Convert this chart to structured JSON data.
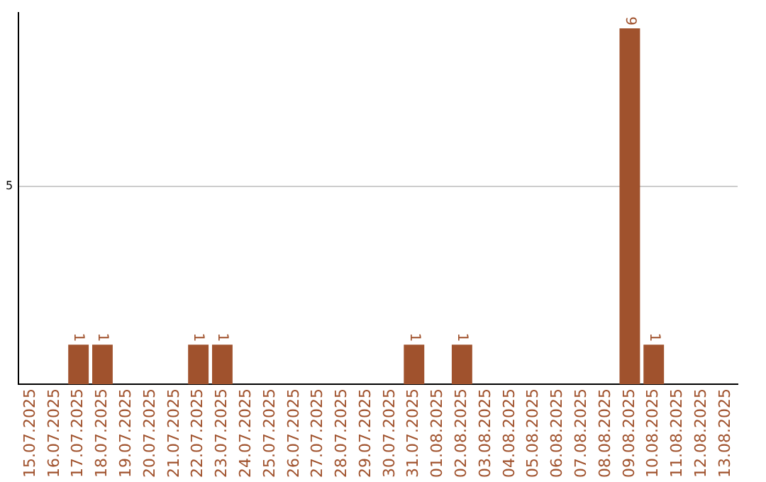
{
  "chart_data": {
    "type": "bar",
    "categories": [
      "15.07.2025",
      "16.07.2025",
      "17.07.2025",
      "18.07.2025",
      "19.07.2025",
      "20.07.2025",
      "21.07.2025",
      "22.07.2025",
      "23.07.2025",
      "24.07.2025",
      "25.07.2025",
      "26.07.2025",
      "27.07.2025",
      "28.07.2025",
      "29.07.2025",
      "30.07.2025",
      "31.07.2025",
      "01.08.2025",
      "02.08.2025",
      "03.08.2025",
      "04.08.2025",
      "05.08.2025",
      "06.08.2025",
      "07.08.2025",
      "08.08.2025",
      "09.08.2025",
      "10.08.2025",
      "11.08.2025",
      "12.08.2025",
      "13.08.2025"
    ],
    "values": [
      0,
      0,
      1,
      1,
      0,
      0,
      0,
      1,
      1,
      0,
      0,
      0,
      0,
      0,
      0,
      0,
      1,
      0,
      1,
      0,
      0,
      0,
      0,
      0,
      0,
      9,
      1,
      0,
      0,
      0
    ],
    "value_labels": [
      null,
      null,
      "1",
      "1",
      null,
      null,
      null,
      "1",
      "1",
      null,
      null,
      null,
      null,
      null,
      null,
      null,
      "1",
      null,
      "1",
      null,
      null,
      null,
      null,
      null,
      null,
      "9",
      "1",
      null,
      null,
      null
    ],
    "color": "#a0522d",
    "ylim": [
      0,
      9.4
    ],
    "yticks": [
      5
    ],
    "grid": "y",
    "legend": false
  }
}
